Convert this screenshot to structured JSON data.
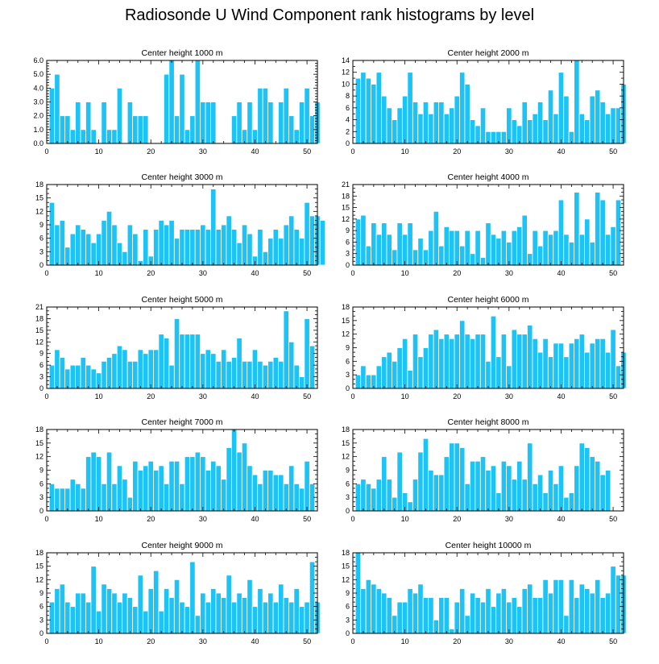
{
  "title": "Radiosonde U Wind Component rank histograms by level",
  "colors": {
    "bar": "#1ec3f5",
    "bar_edge": "#ffffff",
    "axis": "#000000"
  },
  "chart_data": [
    {
      "type": "bar",
      "title": "Center height 1000 m",
      "xlim": [
        0,
        52
      ],
      "ylim": [
        0,
        6
      ],
      "xticks": [
        0,
        10,
        20,
        30,
        40,
        50
      ],
      "yticks": [
        0,
        1,
        2,
        3,
        4,
        5,
        6
      ],
      "ytick_labels": [
        "0.0",
        "1.0",
        "2.0",
        "3.0",
        "4.0",
        "5.0",
        "6.0"
      ],
      "values": [
        4,
        5,
        2,
        2,
        1,
        3,
        1,
        3,
        1,
        0,
        3,
        1,
        1,
        4,
        0,
        3,
        2,
        2,
        2,
        0,
        0,
        0,
        5,
        6,
        2,
        5,
        1,
        2,
        6,
        3,
        3,
        3,
        0,
        0,
        0,
        2,
        3,
        1,
        3,
        1,
        4,
        4,
        3,
        0,
        3,
        4,
        2,
        1,
        3,
        4,
        2,
        3
      ]
    },
    {
      "type": "bar",
      "title": "Center height 2000 m",
      "xlim": [
        0,
        52
      ],
      "ylim": [
        0,
        14
      ],
      "xticks": [
        0,
        10,
        20,
        30,
        40,
        50
      ],
      "yticks": [
        0,
        2,
        4,
        6,
        8,
        10,
        12,
        14
      ],
      "ytick_labels": [
        "0",
        "2",
        "4",
        "6",
        "8",
        "10",
        "12",
        "14"
      ],
      "values": [
        11,
        12,
        11,
        10,
        12,
        8,
        6,
        4,
        6,
        8,
        12,
        7,
        5,
        7,
        5,
        7,
        7,
        5,
        6,
        8,
        12,
        10,
        4,
        3,
        6,
        2,
        2,
        2,
        2,
        6,
        4,
        3,
        7,
        4,
        5,
        7,
        4,
        9,
        5,
        12,
        8,
        2,
        14,
        5,
        4,
        8,
        9,
        7,
        5,
        6,
        6,
        10
      ]
    },
    {
      "type": "bar",
      "title": "Center height 3000 m",
      "xlim": [
        0,
        52
      ],
      "ylim": [
        0,
        18
      ],
      "xticks": [
        0,
        10,
        20,
        30,
        40,
        50
      ],
      "yticks": [
        0,
        3,
        6,
        9,
        12,
        15,
        18
      ],
      "ytick_labels": [
        "0",
        "3",
        "6",
        "9",
        "12",
        "15",
        "18"
      ],
      "values": [
        14,
        9,
        10,
        4,
        7,
        9,
        8,
        7,
        5,
        7,
        10,
        12,
        9,
        5,
        3,
        9,
        7,
        1,
        8,
        2,
        8,
        10,
        9,
        10,
        6,
        8,
        8,
        8,
        8,
        9,
        8,
        17,
        8,
        9,
        11,
        8,
        5,
        9,
        7,
        2,
        8,
        3,
        6,
        8,
        6,
        9,
        11,
        8,
        6,
        14,
        11,
        11,
        10
      ]
    },
    {
      "type": "bar",
      "title": "Center height 4000 m",
      "xlim": [
        0,
        52
      ],
      "ylim": [
        0,
        21
      ],
      "xticks": [
        0,
        10,
        20,
        30,
        40,
        50
      ],
      "yticks": [
        0,
        3,
        6,
        9,
        12,
        15,
        18,
        21
      ],
      "ytick_labels": [
        "0",
        "3",
        "6",
        "9",
        "12",
        "15",
        "18",
        "21"
      ],
      "values": [
        12,
        13,
        5,
        11,
        8,
        11,
        8,
        4,
        11,
        8,
        11,
        4,
        7,
        4,
        9,
        14,
        5,
        10,
        9,
        9,
        5,
        9,
        3,
        9,
        2,
        11,
        8,
        7,
        9,
        6,
        9,
        10,
        13,
        3,
        9,
        5,
        9,
        8,
        9,
        17,
        8,
        6,
        19,
        8,
        12,
        6,
        19,
        17,
        8,
        10,
        17
      ]
    },
    {
      "type": "bar",
      "title": "Center height 5000 m",
      "xlim": [
        0,
        52
      ],
      "ylim": [
        0,
        21
      ],
      "xticks": [
        0,
        10,
        20,
        30,
        40,
        50
      ],
      "yticks": [
        0,
        3,
        6,
        9,
        12,
        15,
        18,
        21
      ],
      "ytick_labels": [
        "0",
        "3",
        "6",
        "9",
        "12",
        "15",
        "18",
        "21"
      ],
      "values": [
        6,
        10,
        8,
        5,
        6,
        6,
        8,
        6,
        5,
        4,
        7,
        8,
        9,
        11,
        10,
        7,
        7,
        10,
        9,
        10,
        10,
        14,
        13,
        6,
        18,
        14,
        14,
        14,
        14,
        9,
        10,
        9,
        7,
        10,
        7,
        8,
        13,
        7,
        7,
        10,
        7,
        6,
        7,
        8,
        7,
        20,
        12,
        6,
        3,
        18,
        11
      ]
    },
    {
      "type": "bar",
      "title": "Center height 6000 m",
      "xlim": [
        0,
        52
      ],
      "ylim": [
        0,
        18
      ],
      "xticks": [
        0,
        10,
        20,
        30,
        40,
        50
      ],
      "yticks": [
        0,
        3,
        6,
        9,
        12,
        15,
        18
      ],
      "ytick_labels": [
        "0",
        "3",
        "6",
        "9",
        "12",
        "15",
        "18"
      ],
      "values": [
        3,
        5,
        3,
        3,
        5,
        7,
        8,
        6,
        9,
        11,
        4,
        12,
        7,
        9,
        12,
        13,
        11,
        12,
        11,
        12,
        15,
        12,
        11,
        12,
        12,
        6,
        16,
        7,
        12,
        5,
        13,
        12,
        12,
        14,
        11,
        8,
        11,
        7,
        10,
        10,
        7,
        10,
        11,
        12,
        8,
        10,
        11,
        11,
        8,
        13,
        5,
        8
      ]
    },
    {
      "type": "bar",
      "title": "Center height 7000 m",
      "xlim": [
        0,
        52
      ],
      "ylim": [
        0,
        18
      ],
      "xticks": [
        0,
        10,
        20,
        30,
        40,
        50
      ],
      "yticks": [
        0,
        3,
        6,
        9,
        12,
        15,
        18
      ],
      "ytick_labels": [
        "0",
        "3",
        "6",
        "9",
        "12",
        "15",
        "18"
      ],
      "values": [
        6,
        5,
        5,
        5,
        7,
        6,
        5,
        12,
        13,
        12,
        6,
        13,
        6,
        10,
        7,
        3,
        11,
        9,
        10,
        11,
        9,
        10,
        6,
        11,
        11,
        6,
        12,
        12,
        13,
        12,
        9,
        11,
        10,
        7,
        14,
        18,
        13,
        15,
        10,
        8,
        6,
        9,
        9,
        8,
        8,
        6,
        10,
        6,
        5,
        11,
        6
      ]
    },
    {
      "type": "bar",
      "title": "Center height 8000 m",
      "xlim": [
        0,
        52
      ],
      "ylim": [
        0,
        18
      ],
      "xticks": [
        0,
        10,
        20,
        30,
        40,
        50
      ],
      "yticks": [
        0,
        3,
        6,
        9,
        12,
        15,
        18
      ],
      "ytick_labels": [
        "0",
        "3",
        "6",
        "9",
        "12",
        "15",
        "18"
      ],
      "values": [
        6,
        7,
        6,
        5,
        7,
        12,
        7,
        3,
        13,
        4,
        2,
        7,
        13,
        16,
        9,
        8,
        8,
        12,
        15,
        15,
        14,
        6,
        11,
        11,
        12,
        9,
        10,
        4,
        11,
        10,
        7,
        11,
        7,
        15,
        6,
        8,
        4,
        9,
        6,
        10,
        3,
        4,
        10,
        15,
        14,
        12,
        11,
        8,
        9
      ]
    },
    {
      "type": "bar",
      "title": "Center height 9000 m",
      "xlim": [
        0,
        52
      ],
      "ylim": [
        0,
        18
      ],
      "xticks": [
        0,
        10,
        20,
        30,
        40,
        50
      ],
      "yticks": [
        0,
        3,
        6,
        9,
        12,
        15,
        18
      ],
      "ytick_labels": [
        "0",
        "3",
        "6",
        "9",
        "12",
        "15",
        "18"
      ],
      "values": [
        7,
        10,
        11,
        7,
        6,
        9,
        9,
        7,
        15,
        5,
        11,
        10,
        9,
        7,
        9,
        8,
        6,
        13,
        5,
        10,
        14,
        5,
        10,
        8,
        12,
        7,
        6,
        16,
        4,
        9,
        7,
        10,
        9,
        8,
        13,
        7,
        9,
        8,
        12,
        6,
        10,
        7,
        9,
        7,
        11,
        8,
        7,
        10,
        6,
        7,
        16,
        7
      ]
    },
    {
      "type": "bar",
      "title": "Center height 10000 m",
      "xlim": [
        0,
        52
      ],
      "ylim": [
        0,
        18
      ],
      "xticks": [
        0,
        10,
        20,
        30,
        40,
        50
      ],
      "yticks": [
        0,
        3,
        6,
        9,
        12,
        15,
        18
      ],
      "ytick_labels": [
        "0",
        "3",
        "6",
        "9",
        "12",
        "15",
        "18"
      ],
      "values": [
        18,
        10,
        12,
        11,
        10,
        9,
        8,
        4,
        7,
        7,
        10,
        9,
        11,
        8,
        8,
        3,
        8,
        8,
        1,
        7,
        10,
        4,
        9,
        8,
        7,
        10,
        6,
        9,
        10,
        7,
        8,
        6,
        10,
        11,
        8,
        8,
        12,
        9,
        12,
        12,
        4,
        12,
        8,
        11,
        10,
        9,
        12,
        8,
        9,
        15,
        13,
        13
      ]
    }
  ]
}
